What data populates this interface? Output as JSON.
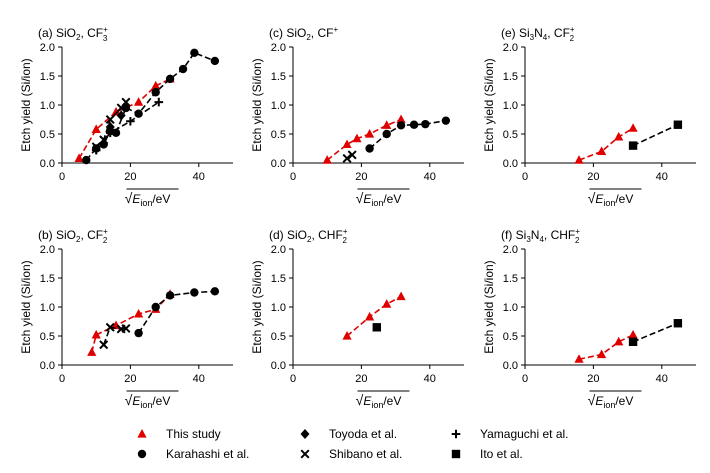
{
  "chart_data": [
    {
      "type": "scatter",
      "panel_label": "(a)",
      "title_main": "SiO",
      "title_sub": "2",
      "title_rest": ", CF",
      "title_ion_sub": "3",
      "title_ion_sup": "+",
      "xlabel_pre": "√",
      "xlabel_var": "E",
      "xlabel_sub": "ion",
      "xlabel_post": "/eV",
      "ylabel": "Etch yield (Si/ion)",
      "xlim": [
        0,
        50
      ],
      "ylim": [
        0,
        2.0
      ],
      "xticks": [
        "0",
        "20",
        "40"
      ],
      "yticks": [
        "0.0",
        "0.5",
        "1.0",
        "1.5",
        "2.0"
      ],
      "series": [
        {
          "name": "This study",
          "marker": "triangle",
          "color": "#e00000",
          "line": "dashed",
          "x": [
            5.0,
            10.0,
            15.8,
            22.4,
            27.4,
            31.6
          ],
          "y": [
            0.08,
            0.58,
            0.88,
            1.05,
            1.33,
            1.45
          ]
        },
        {
          "name": "Karahashi et al.",
          "marker": "circle",
          "color": "#000000",
          "line": "dashed",
          "x": [
            7.1,
            10.0,
            12.2,
            14.1,
            15.8,
            18.7,
            22.4,
            27.4,
            31.6,
            35.4,
            38.7,
            44.7
          ],
          "y": [
            0.05,
            0.25,
            0.32,
            0.55,
            0.52,
            0.95,
            0.85,
            1.22,
            1.45,
            1.62,
            1.9,
            1.76
          ]
        },
        {
          "name": "Toyoda et al.",
          "marker": "diamond",
          "color": "#000000",
          "line": "none",
          "x": [
            14.1,
            17.3
          ],
          "y": [
            0.62,
            0.82
          ]
        },
        {
          "name": "Shibano et al.",
          "marker": "x",
          "color": "#000000",
          "line": "dashed",
          "x": [
            10.0,
            12.2,
            14.1,
            17.3,
            18.7
          ],
          "y": [
            0.28,
            0.4,
            0.75,
            0.95,
            1.05
          ]
        },
        {
          "name": "Yamaguchi et al.",
          "marker": "plus",
          "color": "#000000",
          "line": "dashed",
          "x": [
            10.0,
            14.1,
            20.0,
            28.3
          ],
          "y": [
            0.22,
            0.52,
            0.72,
            1.05
          ]
        }
      ]
    },
    {
      "type": "scatter",
      "panel_label": "(c)",
      "title_main": "SiO",
      "title_sub": "2",
      "title_rest": ", CF",
      "title_ion_sub": "",
      "title_ion_sup": "+",
      "xlabel_pre": "√",
      "xlabel_var": "E",
      "xlabel_sub": "ion",
      "xlabel_post": "/eV",
      "ylabel": "Etch yield (Si/ion)",
      "xlim": [
        0,
        50
      ],
      "ylim": [
        0,
        2.0
      ],
      "xticks": [
        "0",
        "20",
        "40"
      ],
      "yticks": [
        "0.0",
        "0.5",
        "1.0",
        "1.5",
        "2.0"
      ],
      "series": [
        {
          "name": "This study",
          "marker": "triangle",
          "color": "#e00000",
          "line": "dashed",
          "x": [
            10.0,
            15.8,
            18.7,
            22.4,
            27.4,
            31.6
          ],
          "y": [
            0.05,
            0.32,
            0.42,
            0.5,
            0.65,
            0.75
          ]
        },
        {
          "name": "Karahashi et al.",
          "marker": "circle",
          "color": "#000000",
          "line": "dashed",
          "x": [
            22.4,
            27.4,
            31.6,
            35.4,
            38.7,
            44.7
          ],
          "y": [
            0.25,
            0.5,
            0.65,
            0.66,
            0.67,
            0.73
          ]
        },
        {
          "name": "Shibano et al.",
          "marker": "x",
          "color": "#000000",
          "line": "dashed",
          "x": [
            15.8,
            17.3
          ],
          "y": [
            0.08,
            0.14
          ]
        }
      ]
    },
    {
      "type": "scatter",
      "panel_label": "(e)",
      "title_main": "Si",
      "title_sub": "3",
      "title_rest": "N",
      "title_rest_sub": "4",
      "title_rest2": ", CF",
      "title_ion_sub": "2",
      "title_ion_sup": "+",
      "xlabel_pre": "√",
      "xlabel_var": "E",
      "xlabel_sub": "ion",
      "xlabel_post": "/eV",
      "ylabel": "Etch yield (Si/ion)",
      "xlim": [
        0,
        50
      ],
      "ylim": [
        0,
        2.0
      ],
      "xticks": [
        "0",
        "20",
        "40"
      ],
      "yticks": [
        "0.0",
        "0.5",
        "1.0",
        "1.5",
        "2.0"
      ],
      "series": [
        {
          "name": "This study",
          "marker": "triangle",
          "color": "#e00000",
          "line": "dashed",
          "x": [
            15.8,
            22.4,
            27.4,
            31.6
          ],
          "y": [
            0.05,
            0.2,
            0.45,
            0.6
          ]
        },
        {
          "name": "Ito et al.",
          "marker": "square",
          "color": "#000000",
          "line": "dashed",
          "x": [
            31.6,
            44.7
          ],
          "y": [
            0.3,
            0.66
          ]
        }
      ]
    },
    {
      "type": "scatter",
      "panel_label": "(b)",
      "title_main": "SiO",
      "title_sub": "2",
      "title_rest": ", CF",
      "title_ion_sub": "2",
      "title_ion_sup": "+",
      "xlabel_pre": "√",
      "xlabel_var": "E",
      "xlabel_sub": "ion",
      "xlabel_post": "/eV",
      "ylabel": "Etch yield (Si/ion)",
      "xlim": [
        0,
        50
      ],
      "ylim": [
        0,
        2.0
      ],
      "xticks": [
        "0",
        "20",
        "40"
      ],
      "yticks": [
        "0.0",
        "0.5",
        "1.0",
        "1.5",
        "2.0"
      ],
      "series": [
        {
          "name": "This study",
          "marker": "triangle",
          "color": "#e00000",
          "line": "dashed",
          "x": [
            8.7,
            10.0,
            15.8,
            22.4,
            27.4,
            31.6
          ],
          "y": [
            0.22,
            0.52,
            0.68,
            0.88,
            0.96,
            1.22
          ]
        },
        {
          "name": "Karahashi et al.",
          "marker": "circle",
          "color": "#000000",
          "line": "dashed",
          "x": [
            22.4,
            27.4,
            31.6,
            38.7,
            44.7
          ],
          "y": [
            0.55,
            1.0,
            1.2,
            1.25,
            1.27
          ]
        },
        {
          "name": "Shibano et al.",
          "marker": "x",
          "color": "#000000",
          "line": "dashed",
          "x": [
            12.2,
            14.1,
            17.3,
            18.7
          ],
          "y": [
            0.35,
            0.65,
            0.62,
            0.63
          ]
        }
      ]
    },
    {
      "type": "scatter",
      "panel_label": "(d)",
      "title_main": "SiO",
      "title_sub": "2",
      "title_rest": ", CHF",
      "title_ion_sub": "2",
      "title_ion_sup": "+",
      "xlabel_pre": "√",
      "xlabel_var": "E",
      "xlabel_sub": "ion",
      "xlabel_post": "/eV",
      "ylabel": "Etch yield (Si/ion)",
      "xlim": [
        0,
        50
      ],
      "ylim": [
        0,
        2.0
      ],
      "xticks": [
        "0",
        "20",
        "40"
      ],
      "yticks": [
        "0.0",
        "0.5",
        "1.0",
        "1.5",
        "2.0"
      ],
      "series": [
        {
          "name": "This study",
          "marker": "triangle",
          "color": "#e00000",
          "line": "dashed",
          "x": [
            15.8,
            22.4,
            27.4,
            31.6
          ],
          "y": [
            0.5,
            0.83,
            1.05,
            1.18
          ]
        },
        {
          "name": "Ito et al.",
          "marker": "square",
          "color": "#000000",
          "line": "none",
          "x": [
            24.5
          ],
          "y": [
            0.65
          ]
        }
      ]
    },
    {
      "type": "scatter",
      "panel_label": "(f)",
      "title_main": "Si",
      "title_sub": "3",
      "title_rest": "N",
      "title_rest_sub": "4",
      "title_rest2": ", CHF",
      "title_ion_sub": "2",
      "title_ion_sup": "+",
      "xlabel_pre": "√",
      "xlabel_var": "E",
      "xlabel_sub": "ion",
      "xlabel_post": "/eV",
      "ylabel": "Etch yield (Si/ion)",
      "xlim": [
        0,
        50
      ],
      "ylim": [
        0,
        2.0
      ],
      "xticks": [
        "0",
        "20",
        "40"
      ],
      "yticks": [
        "0.0",
        "0.5",
        "1.0",
        "1.5",
        "2.0"
      ],
      "series": [
        {
          "name": "This study",
          "marker": "triangle",
          "color": "#e00000",
          "line": "dashed",
          "x": [
            15.8,
            22.4,
            27.4,
            31.6
          ],
          "y": [
            0.1,
            0.18,
            0.4,
            0.52
          ]
        },
        {
          "name": "Ito et al.",
          "marker": "square",
          "color": "#000000",
          "line": "dashed",
          "x": [
            31.6,
            44.7
          ],
          "y": [
            0.4,
            0.72
          ]
        }
      ]
    }
  ],
  "legend": {
    "placement": "bottom",
    "entries": [
      {
        "name": "This study",
        "marker": "triangle",
        "color": "#e00000"
      },
      {
        "name": "Toyoda et al.",
        "marker": "diamond",
        "color": "#000000"
      },
      {
        "name": "Yamaguchi et al.",
        "marker": "plus",
        "color": "#000000"
      },
      {
        "name": "Karahashi et al.",
        "marker": "circle",
        "color": "#000000"
      },
      {
        "name": "Shibano et al.",
        "marker": "x",
        "color": "#000000"
      },
      {
        "name": "Ito et al.",
        "marker": "square",
        "color": "#000000"
      }
    ]
  }
}
